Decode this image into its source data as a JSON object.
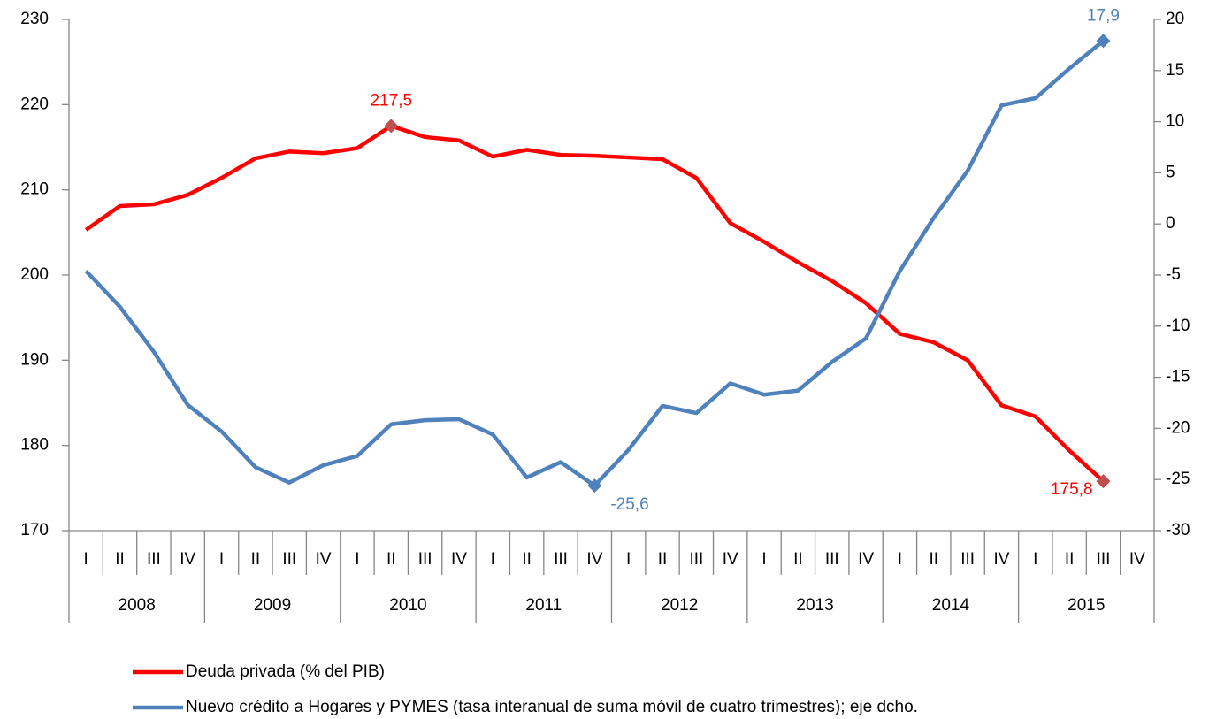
{
  "chart_data": {
    "type": "line",
    "categories": [
      "I",
      "II",
      "III",
      "IV",
      "I",
      "II",
      "III",
      "IV",
      "I",
      "II",
      "III",
      "IV",
      "I",
      "II",
      "III",
      "IV",
      "I",
      "II",
      "III",
      "IV",
      "I",
      "II",
      "III",
      "IV",
      "I",
      "II",
      "III",
      "IV",
      "I",
      "II",
      "III",
      "IV"
    ],
    "years": [
      "2008",
      "2009",
      "2010",
      "2011",
      "2012",
      "2013",
      "2014",
      "2015"
    ],
    "ylim": [
      170,
      230
    ],
    "yticks": [
      170,
      180,
      190,
      200,
      210,
      220,
      230
    ],
    "y2lim": [
      -30,
      20
    ],
    "y2ticks": [
      -30,
      -25,
      -20,
      -15,
      -10,
      -5,
      0,
      5,
      10,
      15,
      20
    ],
    "legend": "bottom",
    "series": [
      {
        "name": "Deuda privada (% del PIB)",
        "color": "#ff0000",
        "marker_color": "#c0504d",
        "values": [
          205.3,
          208.1,
          208.3,
          209.4,
          211.4,
          213.7,
          214.5,
          214.3,
          214.9,
          217.5,
          216.2,
          215.8,
          213.9,
          214.7,
          214.1,
          214.0,
          213.8,
          213.6,
          211.4,
          206.1,
          203.9,
          201.5,
          199.3,
          196.7,
          193.1,
          192.1,
          190.0,
          184.7,
          183.4,
          179.4,
          175.8,
          null
        ],
        "value_labels": [
          null,
          null,
          null,
          null,
          null,
          null,
          null,
          null,
          null,
          "217,5",
          null,
          null,
          null,
          null,
          null,
          null,
          null,
          null,
          null,
          null,
          null,
          null,
          null,
          null,
          null,
          null,
          null,
          null,
          null,
          null,
          "175,8",
          null
        ]
      },
      {
        "name": "Nuevo crédito a Hogares y PYMES (tasa interanual de suma móvil de cuatro trimestres); eje dcho.",
        "color": "#4f81bd",
        "marker_color": "#4f81bd",
        "axis": "y2",
        "values": [
          -4.6,
          -8.1,
          -12.5,
          -17.7,
          -20.3,
          -23.8,
          -25.3,
          -23.6,
          -22.7,
          -19.6,
          -19.2,
          -19.1,
          -20.6,
          -24.8,
          -23.3,
          -25.6,
          -22.1,
          -17.8,
          -18.5,
          -15.6,
          -16.7,
          -16.3,
          -13.5,
          -11.2,
          -4.6,
          0.6,
          5.2,
          11.6,
          12.3,
          15.2,
          17.9,
          null
        ],
        "value_labels": [
          null,
          null,
          null,
          null,
          null,
          null,
          null,
          null,
          null,
          null,
          null,
          null,
          null,
          null,
          null,
          "-25,6",
          null,
          null,
          null,
          null,
          null,
          null,
          null,
          null,
          null,
          null,
          null,
          null,
          null,
          null,
          "17,9",
          null
        ]
      }
    ]
  }
}
